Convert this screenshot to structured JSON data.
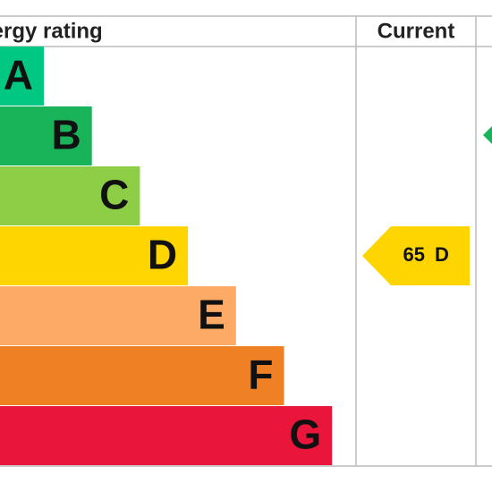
{
  "header": {
    "title": "Energy rating",
    "current": "Current"
  },
  "bands": [
    {
      "letter": "A",
      "color": "#00c781"
    },
    {
      "letter": "B",
      "color": "#19b459"
    },
    {
      "letter": "C",
      "color": "#8dce46"
    },
    {
      "letter": "D",
      "color": "#ffd500"
    },
    {
      "letter": "E",
      "color": "#fcaa65"
    },
    {
      "letter": "F",
      "color": "#ef8023"
    },
    {
      "letter": "G",
      "color": "#e9153b"
    }
  ],
  "current": {
    "value": 65,
    "letter": "D"
  }
}
